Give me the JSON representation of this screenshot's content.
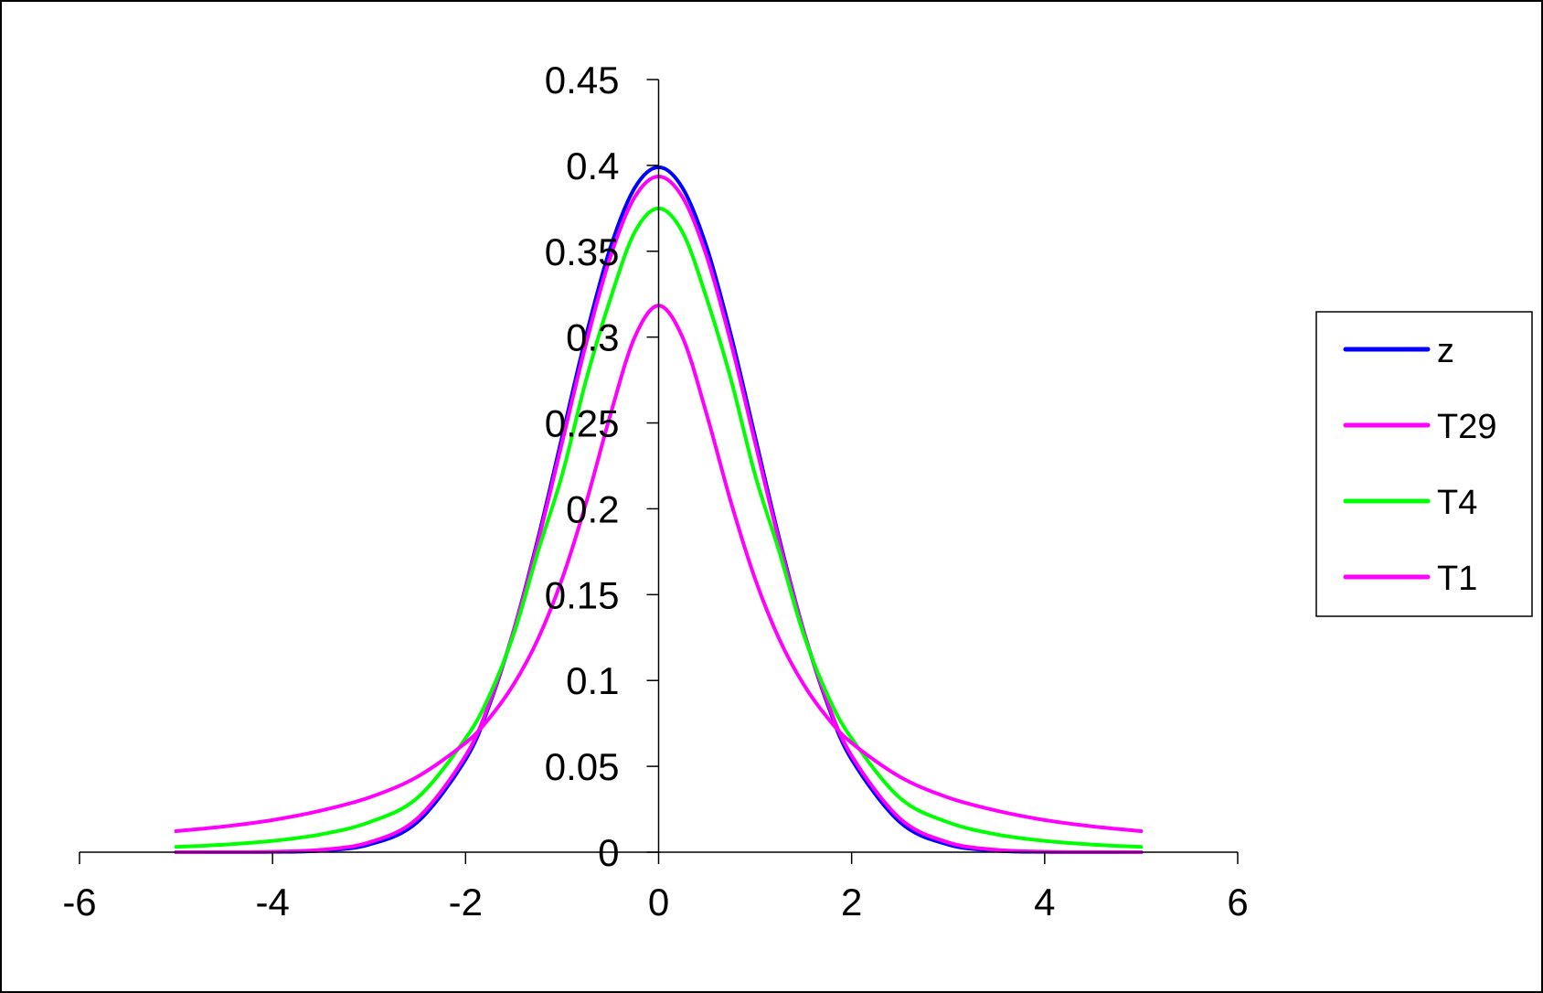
{
  "chart_data": {
    "type": "line",
    "title": "",
    "xlabel": "",
    "ylabel": "",
    "xlim": [
      -6,
      6
    ],
    "ylim": [
      0,
      0.45
    ],
    "x_ticks": [
      -6,
      -4,
      -2,
      0,
      2,
      4,
      6
    ],
    "y_ticks": [
      0,
      0.05,
      0.1,
      0.15,
      0.2,
      0.25,
      0.3,
      0.35,
      0.4,
      0.45
    ],
    "x_tick_labels": [
      "-6",
      "-4",
      "-2",
      "0",
      "2",
      "4",
      "6"
    ],
    "y_tick_labels": [
      "0",
      "0.05",
      "0.1",
      "0.15",
      "0.2",
      "0.25",
      "0.3",
      "0.35",
      "0.4",
      "0.45"
    ],
    "grid": false,
    "legend_position": "right",
    "x": [
      -5,
      -4.5,
      -4,
      -3.5,
      -3,
      -2.5,
      -2,
      -1.75,
      -1.5,
      -1.25,
      -1,
      -0.75,
      -0.5,
      -0.25,
      0,
      0.25,
      0.5,
      0.75,
      1,
      1.25,
      1.5,
      1.75,
      2,
      2.5,
      3,
      3.5,
      4,
      4.5,
      5
    ],
    "series": [
      {
        "name": "z",
        "color": "#0000ff",
        "values": [
          1.5e-06,
          1.6e-05,
          0.000134,
          0.000873,
          0.004432,
          0.017528,
          0.053991,
          0.086277,
          0.129518,
          0.182649,
          0.241971,
          0.301137,
          0.352065,
          0.386668,
          0.398942,
          0.386668,
          0.352065,
          0.301137,
          0.241971,
          0.182649,
          0.129518,
          0.086277,
          0.053991,
          0.017528,
          0.004432,
          0.000873,
          0.000134,
          1.6e-05,
          1.5e-06
        ]
      },
      {
        "name": "T29",
        "color": "#ff00ff",
        "values": [
          1.7e-05,
          6.9e-05,
          0.000298,
          0.001395,
          0.005681,
          0.019659,
          0.056156,
          0.087523,
          0.129216,
          0.180738,
          0.238547,
          0.296512,
          0.346718,
          0.381284,
          0.39358,
          0.381284,
          0.346718,
          0.296512,
          0.238547,
          0.180738,
          0.129216,
          0.087523,
          0.056156,
          0.019659,
          0.005681,
          0.001395,
          0.000298,
          6.9e-05,
          1.7e-05
        ]
      },
      {
        "name": "T4",
        "color": "#00ff00",
        "values": [
          0.00307,
          0.00441,
          0.00659,
          0.01037,
          0.01741,
          0.03161,
          0.06629,
          0.09155,
          0.12727,
          0.17504,
          0.21967,
          0.27525,
          0.32219,
          0.36084,
          0.375,
          0.36084,
          0.32219,
          0.27525,
          0.21967,
          0.17504,
          0.12727,
          0.09155,
          0.06629,
          0.03161,
          0.01741,
          0.01037,
          0.00659,
          0.00441,
          0.00307
        ]
      },
      {
        "name": "T1",
        "color": "#ff00ff",
        "values": [
          0.012243,
          0.014979,
          0.018724,
          0.024206,
          0.031831,
          0.043905,
          0.063662,
          0.078321,
          0.097942,
          0.124137,
          0.159155,
          0.203718,
          0.254648,
          0.299585,
          0.31831,
          0.299585,
          0.254648,
          0.203718,
          0.159155,
          0.124137,
          0.097942,
          0.078321,
          0.063662,
          0.043905,
          0.031831,
          0.024206,
          0.018724,
          0.014979,
          0.012243
        ]
      }
    ]
  }
}
